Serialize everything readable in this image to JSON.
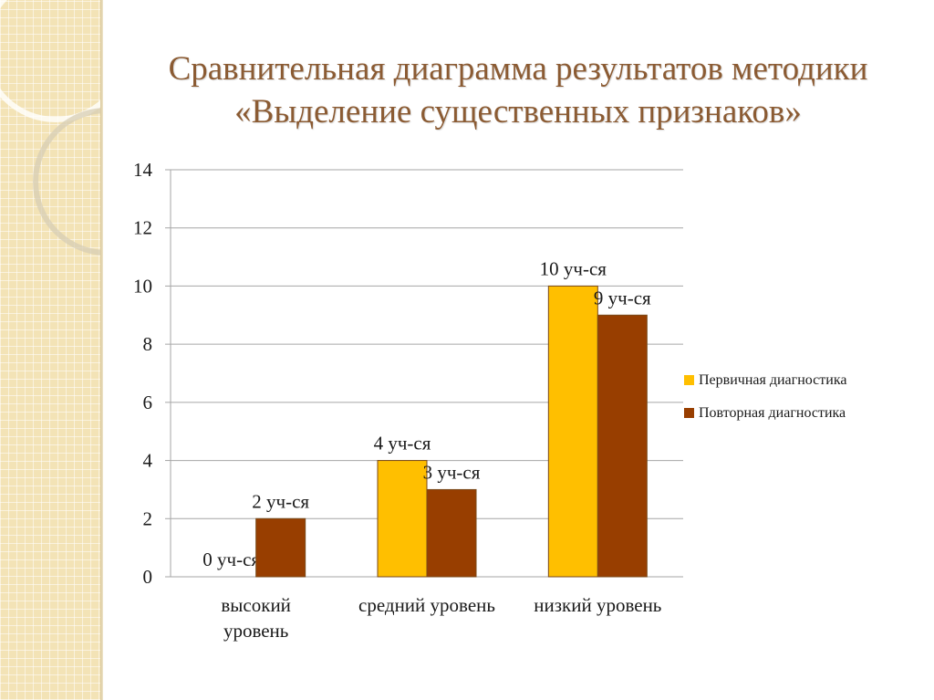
{
  "title_lines": [
    "Сравнительная диаграмма результатов методики",
    "«Выделение существенных признаков»"
  ],
  "colors": {
    "primary_series": "#FFBF00",
    "secondary_series": "#983E00",
    "title": "#8B5B33",
    "grid": "#A6A6A6"
  },
  "chart_data": {
    "type": "bar",
    "categories": [
      [
        "высокий",
        "уровень"
      ],
      [
        "средний уровень"
      ],
      [
        "низкий уровень"
      ]
    ],
    "series": [
      {
        "name": "Первичная диагностика",
        "values": [
          0,
          4,
          10
        ],
        "labels": [
          "0 уч-ся",
          "4 уч-ся",
          "10 уч-ся"
        ],
        "color": "#FFBF00"
      },
      {
        "name": "Повторная диагностика",
        "values": [
          2,
          3,
          9
        ],
        "labels": [
          "2 уч-ся",
          "3 уч-ся",
          "9 уч-ся"
        ],
        "color": "#983E00"
      }
    ],
    "ylim": [
      0,
      14
    ],
    "yticks": [
      0,
      2,
      4,
      6,
      8,
      10,
      12,
      14
    ],
    "grid": true,
    "legend_position": "right"
  }
}
